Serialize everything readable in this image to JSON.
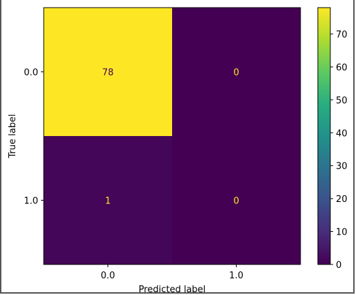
{
  "chart_data": {
    "type": "heatmap",
    "title": "",
    "xlabel": "Predicted label",
    "ylabel": "True label",
    "x_tick_labels": [
      "0.0",
      "1.0"
    ],
    "y_tick_labels": [
      "0.0",
      "1.0"
    ],
    "matrix": [
      [
        78,
        0
      ],
      [
        1,
        0
      ]
    ],
    "cell_labels": [
      [
        "78",
        "0"
      ],
      [
        "1",
        "0"
      ]
    ],
    "colormap": "viridis",
    "vmin": 0,
    "vmax": 78,
    "colorbar_ticks": [
      0,
      10,
      20,
      30,
      40,
      50,
      60,
      70
    ],
    "colorbar_tick_labels": [
      "0",
      "10",
      "20",
      "30",
      "40",
      "50",
      "60",
      "70"
    ],
    "grid": false,
    "high_text_color": "#440154",
    "low_text_color": "#fde725"
  }
}
